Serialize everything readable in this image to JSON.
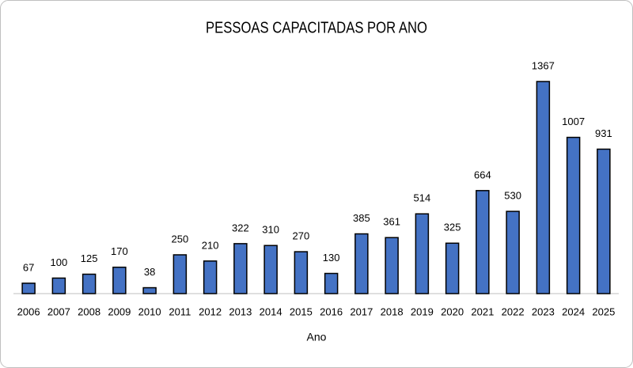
{
  "chart_data": {
    "type": "bar",
    "title": "PESSOAS CAPACITADAS POR ANO",
    "x_label": "Ano",
    "categories": [
      "2006",
      "2007",
      "2008",
      "2009",
      "2010",
      "2011",
      "2012",
      "2013",
      "2014",
      "2015",
      "2016",
      "2017",
      "2018",
      "2019",
      "2020",
      "2021",
      "2022",
      "2023",
      "2024",
      "2025"
    ],
    "values": [
      67,
      100,
      125,
      170,
      38,
      250,
      210,
      322,
      310,
      270,
      130,
      385,
      361,
      514,
      325,
      664,
      530,
      1367,
      1007,
      931
    ],
    "color": "#4472c4",
    "data_labels": true
  }
}
